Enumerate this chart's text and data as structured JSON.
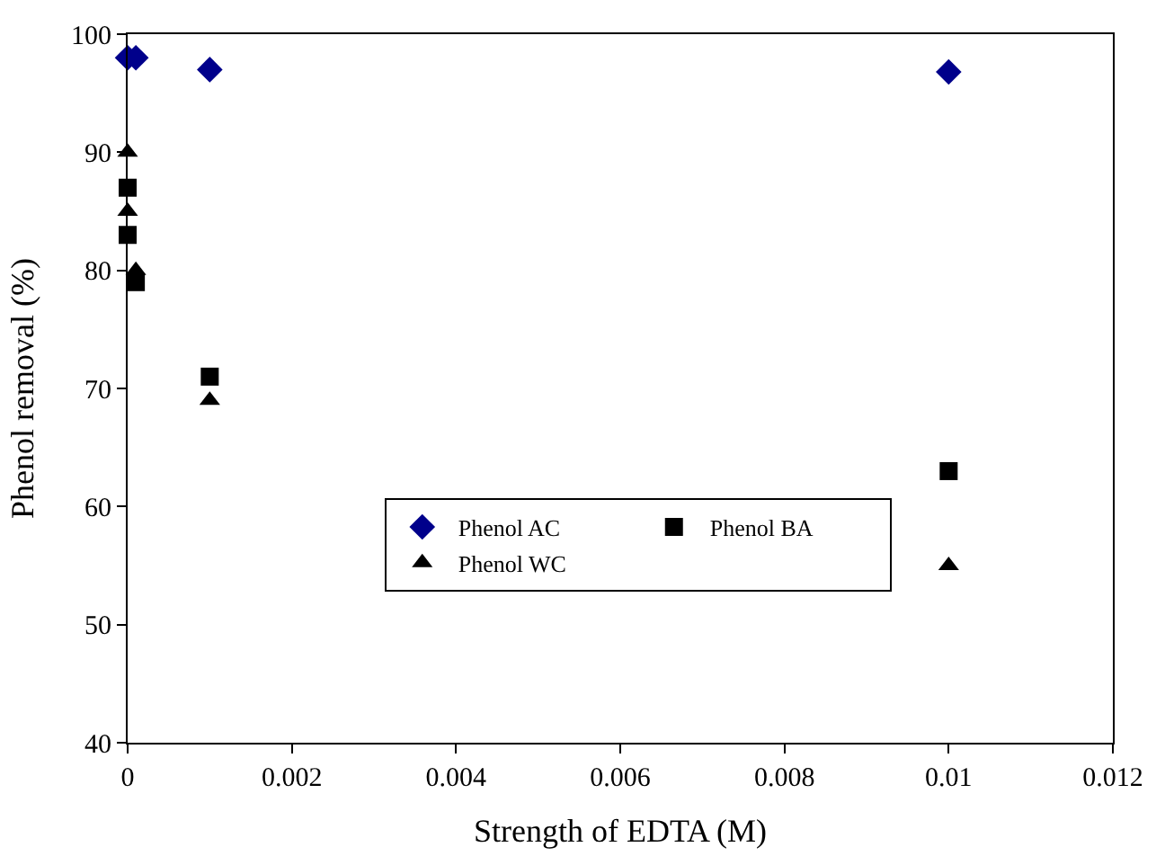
{
  "chart_data": {
    "type": "scatter",
    "xlabel": "Strength of EDTA (M)",
    "ylabel": "Phenol removal (%)",
    "xlim": [
      0,
      0.012
    ],
    "xticks": [
      0,
      0.002,
      0.004,
      0.006,
      0.008,
      0.01,
      0.012
    ],
    "ylim": [
      40,
      100
    ],
    "yticks": [
      40,
      50,
      60,
      70,
      80,
      90,
      100
    ],
    "legend": "bottom",
    "series": [
      {
        "name": "Phenol AC",
        "color": "#00008b",
        "marker": "diamond",
        "x": [
          0,
          0.0001,
          0.001,
          0.01
        ],
        "values": [
          98,
          98,
          97,
          96.8
        ]
      },
      {
        "name": "Phenol BA",
        "color": "#000000",
        "marker": "square",
        "x": [
          0,
          0,
          0.0001,
          0.001,
          0.01
        ],
        "values": [
          87,
          83,
          79,
          71,
          63
        ]
      },
      {
        "name": "Phenol WC",
        "color": "#000000",
        "marker": "triangle",
        "x": [
          0,
          0,
          0.0001,
          0.001,
          0.01
        ],
        "values": [
          90,
          85,
          80,
          69,
          55
        ]
      }
    ]
  }
}
